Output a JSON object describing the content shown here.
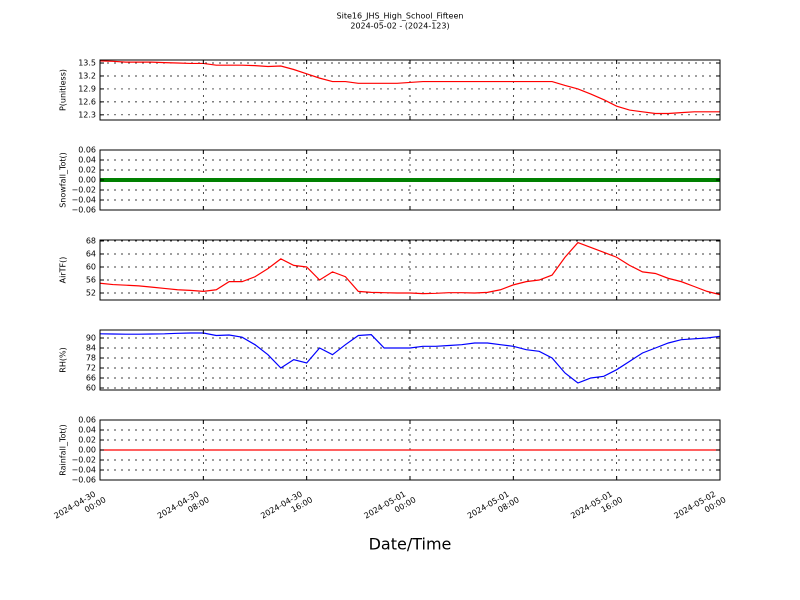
{
  "chart_data": {
    "type": "line",
    "title": "Site16_JHS_High_School_Fifteen",
    "subtitle": "2024-05-02 - (2024-123)",
    "xlabel": "Date/Time",
    "x": [
      "2024-04-30 00:00",
      "2024-04-30 01:00",
      "2024-04-30 02:00",
      "2024-04-30 03:00",
      "2024-04-30 04:00",
      "2024-04-30 05:00",
      "2024-04-30 06:00",
      "2024-04-30 07:00",
      "2024-04-30 08:00",
      "2024-04-30 09:00",
      "2024-04-30 10:00",
      "2024-04-30 11:00",
      "2024-04-30 12:00",
      "2024-04-30 13:00",
      "2024-04-30 14:00",
      "2024-04-30 15:00",
      "2024-04-30 16:00",
      "2024-04-30 17:00",
      "2024-04-30 18:00",
      "2024-04-30 19:00",
      "2024-04-30 20:00",
      "2024-04-30 21:00",
      "2024-04-30 22:00",
      "2024-04-30 23:00",
      "2024-05-01 00:00",
      "2024-05-01 01:00",
      "2024-05-01 02:00",
      "2024-05-01 03:00",
      "2024-05-01 04:00",
      "2024-05-01 05:00",
      "2024-05-01 06:00",
      "2024-05-01 07:00",
      "2024-05-01 08:00",
      "2024-05-01 09:00",
      "2024-05-01 10:00",
      "2024-05-01 11:00",
      "2024-05-01 12:00",
      "2024-05-01 13:00",
      "2024-05-01 14:00",
      "2024-05-01 15:00",
      "2024-05-01 16:00",
      "2024-05-01 17:00",
      "2024-05-01 18:00",
      "2024-05-01 19:00",
      "2024-05-01 20:00",
      "2024-05-01 21:00",
      "2024-05-01 22:00",
      "2024-05-01 23:00",
      "2024-05-02 00:00"
    ],
    "xticks": [
      "2024-04-30 00:00",
      "2024-04-30 08:00",
      "2024-04-30 16:00",
      "2024-05-01 00:00",
      "2024-05-01 08:00",
      "2024-05-01 16:00",
      "2024-05-02 00:00"
    ],
    "grid": true,
    "panels": [
      {
        "ylabel": "P(unitless)",
        "ylim": [
          12.18,
          13.57
        ],
        "yticks": [
          12.3,
          12.6,
          12.9,
          13.2,
          13.5
        ],
        "series": [
          {
            "color": "#ff0000",
            "values": [
              13.55,
              13.54,
              13.52,
              13.52,
              13.52,
              13.51,
              13.5,
              13.49,
              13.49,
              13.45,
              13.45,
              13.45,
              13.44,
              13.42,
              13.43,
              13.35,
              13.25,
              13.15,
              13.07,
              13.07,
              13.03,
              13.03,
              13.03,
              13.03,
              13.05,
              13.07,
              13.07,
              13.07,
              13.07,
              13.07,
              13.07,
              13.07,
              13.07,
              13.07,
              13.07,
              13.07,
              12.98,
              12.9,
              12.78,
              12.65,
              12.5,
              12.41,
              12.37,
              12.33,
              12.33,
              12.35,
              12.37,
              12.37,
              12.37
            ]
          }
        ]
      },
      {
        "ylabel": "Snowfall_Tot()",
        "ylim": [
          -0.06,
          0.06
        ],
        "yticks": [
          0.06,
          0.04,
          0.02,
          {
            "value": 0,
            "label": "0.00"
          },
          {
            "value": -0.02,
            "label": "−0.02"
          },
          {
            "value": -0.04,
            "label": "−0.04"
          },
          {
            "value": -0.06,
            "label": "−0.06"
          }
        ],
        "series": [
          {
            "color": "#008000",
            "values": [
              0,
              0,
              0,
              0,
              0,
              0,
              0,
              0,
              0,
              0,
              0,
              0,
              0,
              0,
              0,
              0,
              0,
              0,
              0,
              0,
              0,
              0,
              0,
              0,
              0,
              0,
              0,
              0,
              0,
              0,
              0,
              0,
              0,
              0,
              0,
              0,
              0,
              0,
              0,
              0,
              0,
              0,
              0,
              0,
              0,
              0,
              0,
              0,
              0
            ]
          }
        ]
      },
      {
        "ylabel": "AirTF()",
        "ylim": [
          49.85,
          68.3
        ],
        "yticks": [
          52,
          56,
          60,
          64,
          68
        ],
        "series": [
          {
            "color": "#ff0000",
            "values": [
              55,
              54.6,
              54.4,
              54.2,
              53.8,
              53.4,
              53,
              52.8,
              52.5,
              53,
              55.5,
              55.5,
              57,
              59.5,
              62.5,
              60.5,
              60,
              56,
              58.5,
              57,
              52.5,
              52.2,
              52.1,
              52,
              52,
              51.8,
              51.9,
              52.1,
              52.1,
              52,
              52.2,
              53,
              54.5,
              55.5,
              56,
              57.5,
              63,
              67.5,
              66,
              64.5,
              63,
              60.5,
              58.5,
              58,
              56.5,
              55.5,
              54,
              52.5,
              51.5
            ]
          }
        ]
      },
      {
        "ylabel": "RH(%)",
        "ylim": [
          58.8,
          94.8
        ],
        "yticks": [
          60,
          66,
          72,
          78,
          84,
          90
        ],
        "series": [
          {
            "color": "#0000ff",
            "values": [
              92.5,
              92.4,
              92.3,
              92.3,
              92.4,
              92.5,
              92.8,
              93,
              93,
              91.5,
              91.8,
              90.5,
              86,
              80,
              72,
              77,
              75,
              84,
              80,
              86,
              91.5,
              92,
              84,
              84,
              84,
              85,
              85,
              85.5,
              86,
              87,
              87,
              86,
              85,
              83,
              82,
              78,
              69,
              63,
              66,
              67,
              71,
              76,
              81,
              84,
              87,
              89,
              89.5,
              90,
              91
            ]
          }
        ]
      },
      {
        "ylabel": "Rainfall_Tot()",
        "ylim": [
          -0.06,
          0.06
        ],
        "yticks": [
          0.06,
          0.04,
          0.02,
          {
            "value": 0,
            "label": "0.00"
          },
          {
            "value": -0.02,
            "label": "−0.02"
          },
          {
            "value": -0.04,
            "label": "−0.04"
          },
          {
            "value": -0.06,
            "label": "−0.06"
          }
        ],
        "series": [
          {
            "color": "#ff0000",
            "values": [
              0,
              0,
              0,
              0,
              0,
              0,
              0,
              0,
              0,
              0,
              0,
              0,
              0,
              0,
              0,
              0,
              0,
              0,
              0,
              0,
              0,
              0,
              0,
              0,
              0,
              0,
              0,
              0,
              0,
              0,
              0,
              0,
              0,
              0,
              0,
              0,
              0,
              0,
              0,
              0,
              0,
              0,
              0,
              0,
              0,
              0,
              0,
              0,
              0
            ]
          }
        ]
      }
    ]
  }
}
